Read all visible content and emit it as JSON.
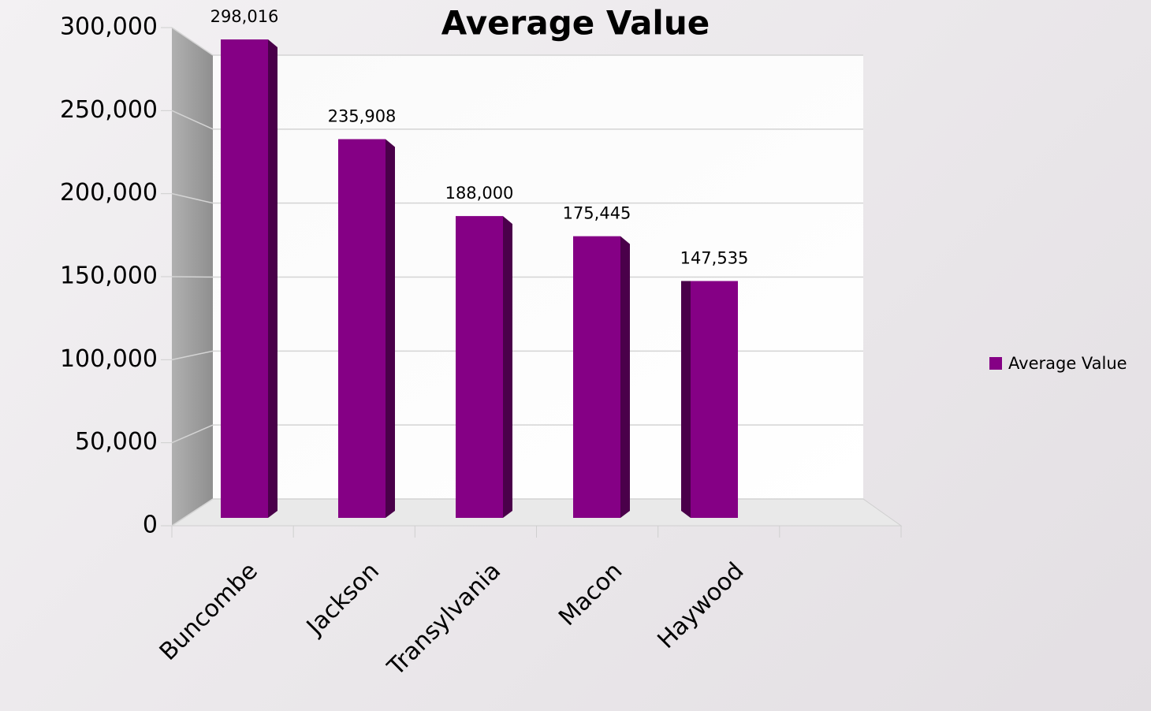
{
  "chart_data": {
    "type": "bar",
    "title": "Average Value",
    "categories": [
      "Buncombe",
      "Jackson",
      "Transylvania",
      "Macon",
      "Haywood"
    ],
    "series": [
      {
        "name": "Average Value",
        "color": "#850085",
        "values": [
          298016,
          235908,
          188000,
          175445,
          147535
        ],
        "value_labels": [
          "298,016",
          "235,908",
          "188,000",
          "175,445",
          "147,535"
        ]
      }
    ],
    "ylim": [
      0,
      300000
    ],
    "yticks": [
      0,
      {
        "value": 50000,
        "label": "50,000"
      },
      {
        "value": 100000,
        "label": "100,000"
      },
      {
        "value": 150000,
        "label": "150,000"
      },
      {
        "value": 200000,
        "label": "200,000"
      },
      {
        "value": 250000,
        "label": "250,000"
      },
      {
        "value": 300000,
        "label": "300,000"
      }
    ],
    "grid": true,
    "legend": "right"
  }
}
